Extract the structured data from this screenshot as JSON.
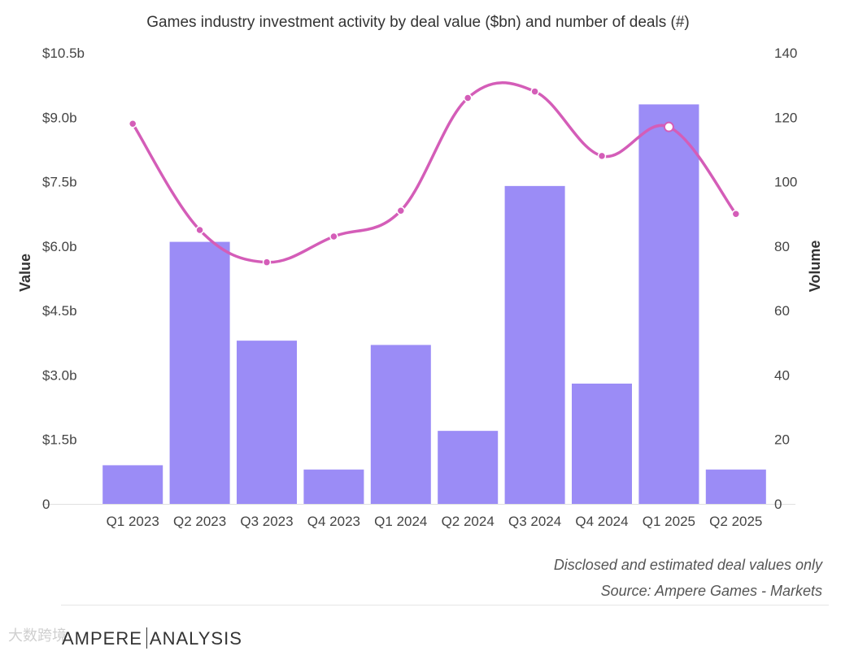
{
  "chart_data": {
    "type": "bar+line",
    "title": "Games industry investment activity by deal value ($bn) and number of deals (#)",
    "categories": [
      "Q1 2023",
      "Q2 2023",
      "Q3 2023",
      "Q4 2023",
      "Q1 2024",
      "Q2 2024",
      "Q3 2024",
      "Q4 2024",
      "Q1 2025",
      "Q2 2025"
    ],
    "series": [
      {
        "name": "Value",
        "type": "bar",
        "axis": "left",
        "color": "#9b8cf6",
        "values": [
          0.9,
          6.1,
          3.8,
          0.8,
          3.7,
          1.7,
          7.4,
          2.8,
          9.3,
          0.8
        ]
      },
      {
        "name": "Volume",
        "type": "line",
        "axis": "right",
        "color": "#d45db8",
        "values": [
          118,
          85,
          75,
          83,
          91,
          126,
          128,
          108,
          117,
          90
        ]
      }
    ],
    "ylabel": "Value",
    "y2label": "Volume",
    "ylim": [
      0,
      10.5
    ],
    "y2lim": [
      0,
      140
    ],
    "yticks": [
      {
        "v": 0,
        "label": "0"
      },
      {
        "v": 1.5,
        "label": "$1.5b"
      },
      {
        "v": 3,
        "label": "$3.0b"
      },
      {
        "v": 4.5,
        "label": "$4.5b"
      },
      {
        "v": 6,
        "label": "$6.0b"
      },
      {
        "v": 7.5,
        "label": "$7.5b"
      },
      {
        "v": 9,
        "label": "$9.0b"
      },
      {
        "v": 10.5,
        "label": "$10.5b"
      }
    ],
    "y2ticks": [
      {
        "v": 0,
        "label": "0"
      },
      {
        "v": 20,
        "label": "20"
      },
      {
        "v": 40,
        "label": "40"
      },
      {
        "v": 60,
        "label": "60"
      },
      {
        "v": 80,
        "label": "80"
      },
      {
        "v": 100,
        "label": "100"
      },
      {
        "v": 120,
        "label": "120"
      },
      {
        "v": 140,
        "label": "140"
      }
    ],
    "highlighted_point": "Q1 2025"
  },
  "notes": {
    "line1": "Disclosed and estimated deal values only",
    "line2": "Source: Ampere Games - Markets"
  },
  "brand": {
    "name_bold": "AMPERE",
    "name_light": "ANALYSIS"
  },
  "watermark": "大数跨境"
}
